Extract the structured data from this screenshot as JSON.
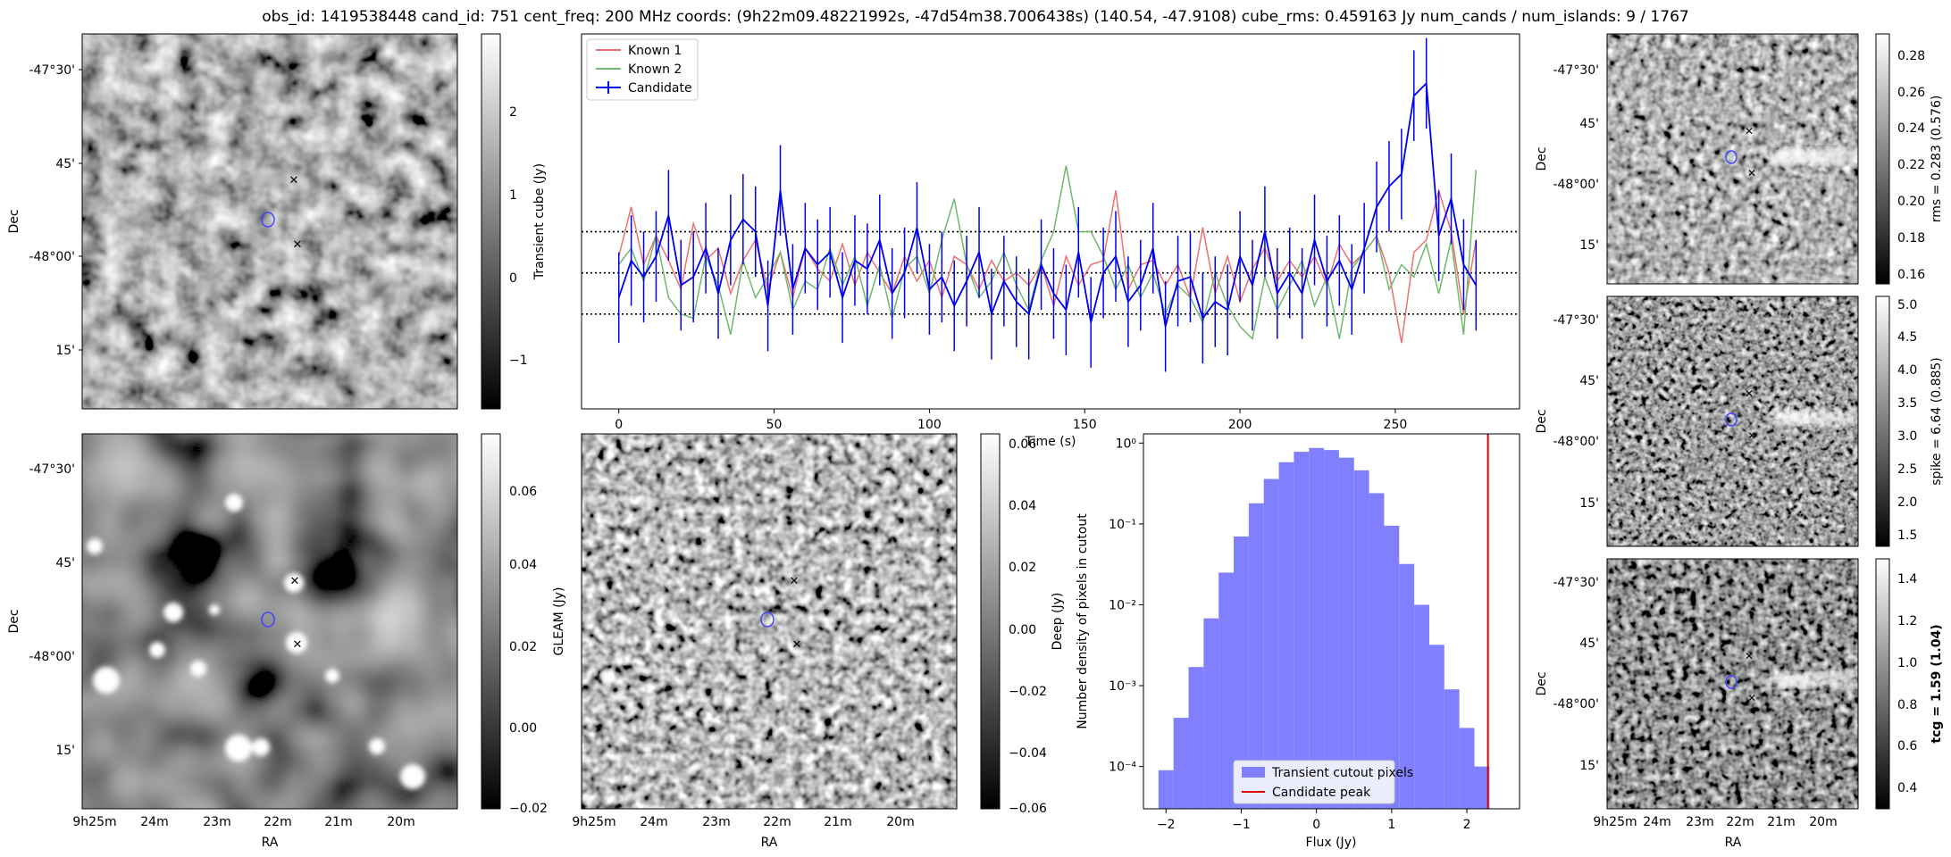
{
  "title": "obs_id: 1419538448 cand_id: 751 cent_freq: 200 MHz coords: (9h22m09.48221992s, -47d54m38.7006438s) (140.54, -47.9108) cube_rms: 0.459163 Jy num_cands / num_islands: 9 / 1767",
  "sky_axes": {
    "xlabel": "RA",
    "ylabel": "Dec",
    "ra_ticks": [
      "9h25m",
      "24m",
      "23m",
      "22m",
      "21m",
      "20m"
    ],
    "dec_ticks": [
      "-47°30'",
      "45'",
      "-48°00'",
      "15'"
    ]
  },
  "chart_data": [
    {
      "type": "heatmap",
      "name": "transient-cube-image",
      "colorbar_label": "Transient cube (Jy)",
      "colorbar_ticks": [
        "2",
        "1",
        "0",
        "−1"
      ],
      "clim": [
        -1.5,
        2.8
      ]
    },
    {
      "type": "heatmap",
      "name": "gleam-image",
      "colorbar_label": "GLEAM (Jy)",
      "colorbar_ticks": [
        "0.06",
        "0.04",
        "0.02",
        "0.00",
        "−0.02"
      ],
      "clim": [
        -0.02,
        0.07
      ]
    },
    {
      "type": "heatmap",
      "name": "deep-image",
      "colorbar_label": "Deep (Jy)",
      "colorbar_ticks": [
        "0.06",
        "0.04",
        "0.02",
        "0.00",
        "−0.02",
        "−0.04",
        "−0.06"
      ],
      "clim": [
        -0.06,
        0.065
      ]
    },
    {
      "type": "heatmap",
      "name": "rms-image",
      "colorbar_label": "rms = 0.283 (0.576)",
      "colorbar_ticks": [
        "0.28",
        "0.26",
        "0.24",
        "0.22",
        "0.20",
        "0.18",
        "0.16"
      ],
      "clim": [
        0.155,
        0.29
      ]
    },
    {
      "type": "heatmap",
      "name": "spike-image",
      "colorbar_label": "spike = 6.64 (0.885)",
      "colorbar_ticks": [
        "5.0",
        "4.5",
        "4.0",
        "3.5",
        "3.0",
        "2.5",
        "2.0",
        "1.5"
      ],
      "clim": [
        1.35,
        5.1
      ]
    },
    {
      "type": "heatmap",
      "name": "tcg-image",
      "colorbar_label": "tcg = 1.59 (1.04)",
      "colorbar_ticks": [
        "1.4",
        "1.2",
        "1.0",
        "0.8",
        "0.6",
        "0.4"
      ],
      "clim": [
        0.28,
        1.48
      ]
    },
    {
      "type": "line",
      "name": "lightcurve",
      "xlabel": "Time (s)",
      "ylabel": "",
      "xlim": [
        -12,
        290
      ],
      "ylim": [
        -3.3,
        5.8
      ],
      "x_ticks": [
        "0",
        "50",
        "100",
        "150",
        "200",
        "250"
      ],
      "hlines": [
        -1,
        0,
        1
      ],
      "legend": [
        "Known 1",
        "Known 2",
        "Candidate"
      ],
      "series": [
        {
          "name": "Known 1",
          "color": "#f07070",
          "x": [
            0,
            4,
            8,
            12,
            16,
            20,
            24,
            28,
            32,
            36,
            40,
            44,
            48,
            52,
            56,
            60,
            64,
            68,
            72,
            76,
            80,
            84,
            88,
            92,
            96,
            100,
            104,
            108,
            112,
            116,
            120,
            124,
            128,
            132,
            136,
            140,
            144,
            148,
            152,
            156,
            160,
            164,
            168,
            172,
            176,
            180,
            184,
            188,
            192,
            196,
            200,
            204,
            208,
            212,
            216,
            220,
            224,
            228,
            232,
            236,
            240,
            244,
            248,
            252,
            256,
            260,
            264,
            268,
            272,
            276
          ],
          "values": [
            0.4,
            1.6,
            0.2,
            0.9,
            0.3,
            -0.4,
            1.2,
            0.3,
            0.6,
            -0.5,
            0.3,
            0.8,
            -0.4,
            0.5,
            -0.6,
            0.6,
            0.1,
            -0.2,
            0.7,
            -0.3,
            0.5,
            0.0,
            -0.5,
            0.4,
            -0.2,
            0.3,
            -0.6,
            0.4,
            0.2,
            -0.4,
            0.3,
            -0.2,
            0.0,
            -0.3,
            0.2,
            -0.8,
            0.4,
            -0.3,
            0.2,
            0.3,
            2.0,
            -0.4,
            0.2,
            0.3,
            -0.3,
            0.2,
            -0.6,
            1.1,
            -0.5,
            0.4,
            -0.7,
            0.1,
            0.6,
            -0.2,
            0.3,
            -0.1,
            0.4,
            -0.3,
            0.7,
            0.2,
            0.5,
            0.9,
            0.0,
            -1.7,
            0.5,
            0.8,
            2.0,
            1.0,
            -1.0,
            0.8
          ]
        },
        {
          "name": "Known 2",
          "color": "#70b870",
          "x": [
            0,
            4,
            8,
            12,
            16,
            20,
            24,
            28,
            32,
            36,
            40,
            44,
            48,
            52,
            56,
            60,
            64,
            68,
            72,
            76,
            80,
            84,
            88,
            92,
            96,
            100,
            104,
            108,
            112,
            116,
            120,
            124,
            128,
            132,
            136,
            140,
            144,
            148,
            152,
            156,
            160,
            164,
            168,
            172,
            176,
            180,
            184,
            188,
            192,
            196,
            200,
            204,
            208,
            212,
            216,
            220,
            224,
            228,
            232,
            236,
            240,
            244,
            248,
            252,
            256,
            260,
            264,
            268,
            272,
            276
          ],
          "values": [
            0.2,
            0.6,
            -0.2,
            0.9,
            -0.6,
            -1.0,
            -1.1,
            0.4,
            -0.3,
            -1.5,
            0.3,
            -0.6,
            -0.1,
            0.5,
            -0.9,
            -0.2,
            -0.4,
            0.6,
            -0.3,
            0.4,
            -0.8,
            0.2,
            -1.1,
            0.1,
            0.4,
            -0.5,
            0.8,
            1.8,
            0.2,
            -0.6,
            -0.2,
            0.5,
            -0.3,
            -0.9,
            0.3,
            1.0,
            2.6,
            1.0,
            1.0,
            0.4,
            -0.4,
            0.2,
            -0.6,
            0.0,
            -1.0,
            -0.3,
            -0.6,
            -1.2,
            0.0,
            -0.8,
            -1.3,
            -1.6,
            -0.1,
            -0.9,
            -0.3,
            0.3,
            -0.8,
            -0.1,
            -1.6,
            0.1,
            0.5,
            0.9,
            -0.4,
            0.2,
            -0.1,
            0.7,
            -0.5,
            0.8,
            -1.5,
            2.5
          ]
        },
        {
          "name": "Candidate",
          "color": "#0000f0",
          "x": [
            0,
            4,
            8,
            12,
            16,
            20,
            24,
            28,
            32,
            36,
            40,
            44,
            48,
            52,
            56,
            60,
            64,
            68,
            72,
            76,
            80,
            84,
            88,
            92,
            96,
            100,
            104,
            108,
            112,
            116,
            120,
            124,
            128,
            132,
            136,
            140,
            144,
            148,
            152,
            156,
            160,
            164,
            168,
            172,
            176,
            180,
            184,
            188,
            192,
            196,
            200,
            204,
            208,
            212,
            216,
            220,
            224,
            228,
            232,
            236,
            240,
            244,
            248,
            252,
            256,
            260,
            264,
            268,
            272,
            276
          ],
          "values": [
            -0.6,
            0.3,
            -0.1,
            0.4,
            1.4,
            -0.3,
            -0.1,
            0.6,
            -0.5,
            0.8,
            1.3,
            1.0,
            -0.8,
            2.0,
            -0.4,
            0.6,
            0.2,
            0.5,
            -0.6,
            0.3,
            0.1,
            0.8,
            -0.5,
            0.0,
            1.1,
            -0.4,
            -0.1,
            -0.8,
            -0.2,
            0.5,
            -1.0,
            -0.2,
            -0.7,
            -1.0,
            0.2,
            -0.5,
            -0.9,
            0.5,
            -1.2,
            0.0,
            0.4,
            -0.7,
            -0.3,
            0.6,
            -1.3,
            -0.2,
            -0.1,
            -1.1,
            -0.7,
            -0.9,
            0.4,
            -0.3,
            1.0,
            -0.5,
            0.0,
            -0.5,
            0.8,
            -0.2,
            0.3,
            -0.4,
            0.6,
            1.6,
            2.1,
            2.4,
            4.3,
            4.6,
            0.9,
            1.8,
            0.2,
            -0.3
          ],
          "errors": [
            1.1,
            1.1,
            1.1,
            1.1,
            1.1,
            1.1,
            1.1,
            1.1,
            1.1,
            1.1,
            1.1,
            1.1,
            1.1,
            1.1,
            1.1,
            1.1,
            1.1,
            1.1,
            1.1,
            1.1,
            1.1,
            1.1,
            1.1,
            1.1,
            1.1,
            1.1,
            1.1,
            1.1,
            1.1,
            1.1,
            1.1,
            1.1,
            1.1,
            1.1,
            1.1,
            1.1,
            1.1,
            1.1,
            1.1,
            1.1,
            1.1,
            1.1,
            1.1,
            1.1,
            1.1,
            1.1,
            1.1,
            1.1,
            1.1,
            1.1,
            1.1,
            1.1,
            1.1,
            1.1,
            1.1,
            1.1,
            1.1,
            1.1,
            1.1,
            1.1,
            1.1,
            1.1,
            1.1,
            1.1,
            1.1,
            1.1,
            1.1,
            1.1,
            1.1,
            1.1
          ]
        }
      ]
    },
    {
      "type": "bar",
      "name": "histogram",
      "xlabel": "Flux (Jy)",
      "ylabel": "Number density of pixels in cutout",
      "yscale": "log",
      "xlim": [
        -2.3,
        2.7
      ],
      "ylim": [
        3e-05,
        1.3
      ],
      "x_ticks": [
        "−2",
        "−1",
        "0",
        "1",
        "2"
      ],
      "x_tick_values": [
        -2,
        -1,
        0,
        1,
        2
      ],
      "y_ticks": [
        "10⁰",
        "10⁻¹",
        "10⁻²",
        "10⁻³",
        "10⁻⁴"
      ],
      "y_tick_values": [
        1,
        0.1,
        0.01,
        0.001,
        0.0001
      ],
      "bin_width": 0.2,
      "bin_starts": [
        -2.1,
        -1.9,
        -1.7,
        -1.5,
        -1.3,
        -1.1,
        -0.9,
        -0.7,
        -0.5,
        -0.3,
        -0.1,
        0.1,
        0.3,
        0.5,
        0.7,
        0.9,
        1.1,
        1.3,
        1.5,
        1.7,
        1.9,
        2.1,
        2.3,
        2.5
      ],
      "values": [
        9e-05,
        0.0004,
        0.0017,
        0.0068,
        0.025,
        0.07,
        0.18,
        0.36,
        0.58,
        0.78,
        0.87,
        0.82,
        0.66,
        0.46,
        0.24,
        0.095,
        0.032,
        0.01,
        0.0032,
        0.0009,
        0.0003,
        0.0001,
        3e-05,
        3e-05
      ],
      "candidate_peak": 2.28,
      "legend": [
        "Transient cutout pixels",
        "Candidate peak"
      ]
    }
  ]
}
